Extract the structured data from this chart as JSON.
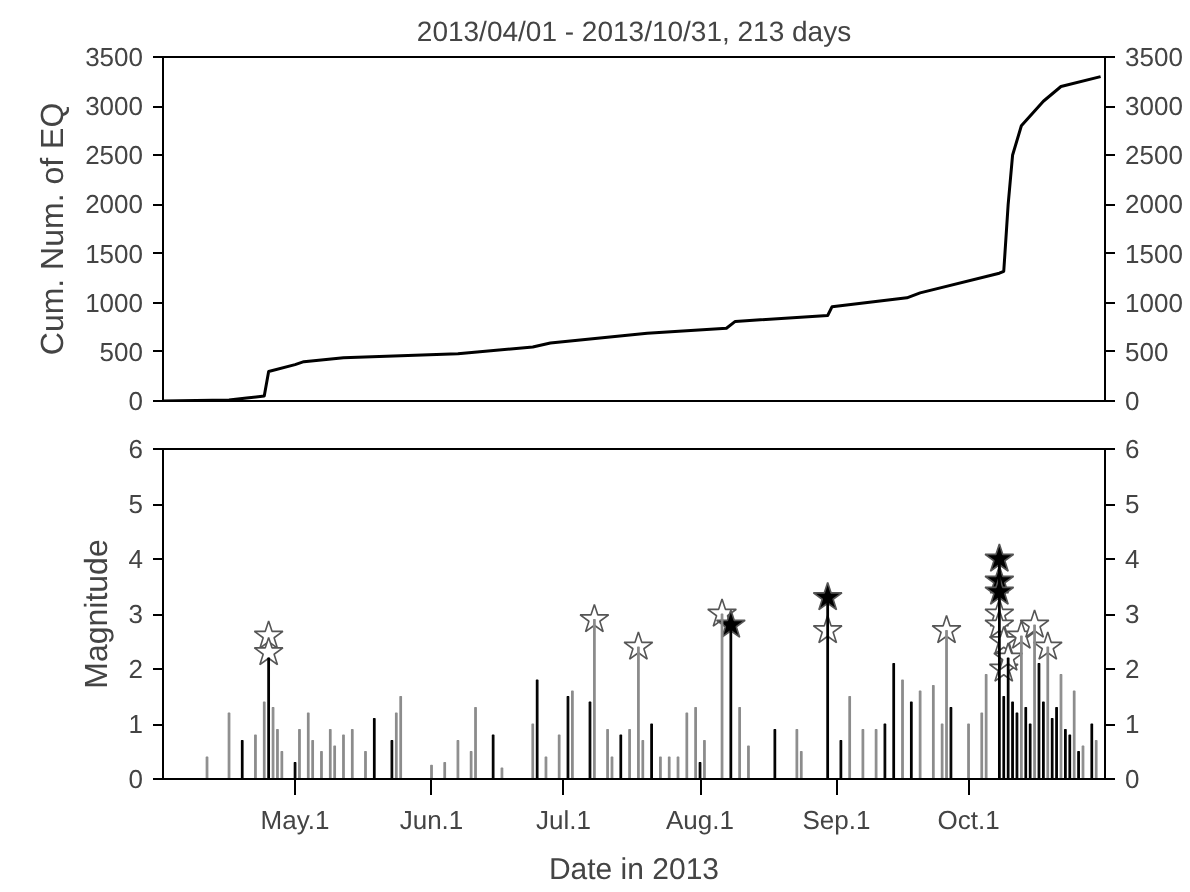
{
  "chart_data": [
    {
      "type": "line",
      "title": "2013/04/01 - 2013/10/31, 213 days",
      "ylabel": "Cum. Num. of EQ",
      "xlim": [
        "2013-04-01",
        "2013-11-01"
      ],
      "ylim": [
        0,
        3500
      ],
      "yticks": [
        0,
        500,
        1000,
        1500,
        2000,
        2500,
        3000,
        3500
      ],
      "y2lim": [
        0,
        3500
      ],
      "y2ticks": [
        0,
        500,
        1000,
        1500,
        2000,
        2500,
        3000,
        3500
      ],
      "tick_labels": "y",
      "grid": false,
      "line_style": "solid",
      "marker": "none",
      "series": [
        {
          "color": "#000000",
          "x": [
            "2013-04-01",
            "2013-04-16",
            "2013-04-20",
            "2013-04-24",
            "2013-04-25",
            "2013-05-01",
            "2013-05-03",
            "2013-05-12",
            "2013-05-25",
            "2013-06-07",
            "2013-06-24",
            "2013-06-28",
            "2013-07-20",
            "2013-08-07",
            "2013-08-09",
            "2013-08-30",
            "2013-08-31",
            "2013-09-17",
            "2013-09-20",
            "2013-10-08",
            "2013-10-09",
            "2013-10-10",
            "2013-10-11",
            "2013-10-13",
            "2013-10-18",
            "2013-10-22",
            "2013-10-31"
          ],
          "values": [
            0,
            10,
            30,
            50,
            300,
            370,
            400,
            440,
            460,
            480,
            550,
            590,
            690,
            740,
            810,
            870,
            960,
            1050,
            1100,
            1300,
            1320,
            2000,
            2500,
            2800,
            3050,
            3200,
            3300
          ]
        }
      ]
    },
    {
      "type": "bar",
      "xlabel": "Date in 2013",
      "ylabel": "Magnitude",
      "xlim": [
        "2013-04-01",
        "2013-11-01"
      ],
      "xticks": [
        {
          "value": "2013-05-01",
          "label": "May.1"
        },
        {
          "value": "2013-06-01",
          "label": "Jun.1"
        },
        {
          "value": "2013-07-01",
          "label": "Jul.1"
        },
        {
          "value": "2013-08-01",
          "label": "Aug.1"
        },
        {
          "value": "2013-09-01",
          "label": "Sep.1"
        },
        {
          "value": "2013-10-01",
          "label": "Oct.1"
        }
      ],
      "ylim": [
        0,
        6
      ],
      "yticks": [
        0,
        1,
        2,
        3,
        4,
        5,
        6
      ],
      "y2lim": [
        0,
        6
      ],
      "y2ticks": [
        0,
        1,
        2,
        3,
        4,
        5,
        6
      ],
      "grid": false,
      "series": [
        {
          "type": "bar",
          "color": "#8c8c8c",
          "x": [
            "2013-04-11",
            "2013-04-16",
            "2013-04-22",
            "2013-04-24",
            "2013-04-26",
            "2013-04-27",
            "2013-04-28",
            "2013-05-02",
            "2013-05-04",
            "2013-05-05",
            "2013-05-07",
            "2013-05-09",
            "2013-05-10",
            "2013-05-12",
            "2013-05-14",
            "2013-05-17",
            "2013-05-24",
            "2013-05-25",
            "2013-06-01",
            "2013-06-04",
            "2013-06-07",
            "2013-06-10",
            "2013-06-11",
            "2013-06-17",
            "2013-06-24",
            "2013-06-27",
            "2013-06-30",
            "2013-07-03",
            "2013-07-08",
            "2013-07-11",
            "2013-07-12",
            "2013-07-16",
            "2013-07-18",
            "2013-07-19",
            "2013-07-23",
            "2013-07-25",
            "2013-07-27",
            "2013-07-29",
            "2013-07-31",
            "2013-08-02",
            "2013-08-06",
            "2013-08-10",
            "2013-08-12",
            "2013-08-23",
            "2013-08-24",
            "2013-09-04",
            "2013-09-07",
            "2013-09-10",
            "2013-09-16",
            "2013-09-20",
            "2013-09-23",
            "2013-09-25",
            "2013-09-26",
            "2013-10-01",
            "2013-10-04",
            "2013-10-05",
            "2013-10-13",
            "2013-10-16",
            "2013-10-19",
            "2013-10-22",
            "2013-10-25",
            "2013-10-27",
            "2013-10-30"
          ],
          "values": [
            0.4,
            1.2,
            0.8,
            1.4,
            1.3,
            0.9,
            0.5,
            0.9,
            1.2,
            0.7,
            0.5,
            0.9,
            0.6,
            0.8,
            0.9,
            0.5,
            1.2,
            1.5,
            0.25,
            0.3,
            0.7,
            0.5,
            1.3,
            0.2,
            1.0,
            0.4,
            0.8,
            1.6,
            2.9,
            0.9,
            0.4,
            0.9,
            2.4,
            0.7,
            0.4,
            0.4,
            0.4,
            1.2,
            1.3,
            0.7,
            3.0,
            1.3,
            0.6,
            0.9,
            0.5,
            1.5,
            0.9,
            0.9,
            1.8,
            1.6,
            1.7,
            1.0,
            2.7,
            1.0,
            1.2,
            1.9,
            2.6,
            2.8,
            2.4,
            1.9,
            1.6,
            0.6,
            0.7
          ]
        },
        {
          "type": "bar",
          "color": "#000000",
          "x": [
            "2013-04-19",
            "2013-04-25",
            "2013-05-01",
            "2013-05-19",
            "2013-05-23",
            "2013-06-15",
            "2013-06-25",
            "2013-07-02",
            "2013-07-07",
            "2013-07-14",
            "2013-07-21",
            "2013-08-01",
            "2013-08-08",
            "2013-08-18",
            "2013-08-30",
            "2013-09-02",
            "2013-09-12",
            "2013-09-14",
            "2013-09-18",
            "2013-09-27",
            "2013-10-08",
            "2013-10-09",
            "2013-10-10",
            "2013-10-11",
            "2013-10-12",
            "2013-10-14",
            "2013-10-15",
            "2013-10-17",
            "2013-10-18",
            "2013-10-20",
            "2013-10-21",
            "2013-10-23",
            "2013-10-24",
            "2013-10-26",
            "2013-10-29"
          ],
          "values": [
            0.7,
            2.2,
            0.3,
            1.1,
            0.7,
            0.8,
            1.8,
            1.5,
            1.4,
            0.8,
            1.0,
            0.3,
            2.8,
            0.9,
            3.3,
            0.7,
            1.0,
            2.1,
            1.4,
            1.3,
            4.0,
            1.5,
            2.2,
            1.4,
            1.2,
            1.3,
            1.0,
            2.1,
            1.4,
            1.1,
            1.3,
            0.9,
            0.8,
            0.5,
            1.0
          ]
        },
        {
          "type": "scatter",
          "marker": "star",
          "color": "#ffffff",
          "x": [
            "2013-04-25",
            "2013-04-25",
            "2013-07-08",
            "2013-07-18",
            "2013-08-06",
            "2013-08-30",
            "2013-09-26",
            "2013-10-08",
            "2013-10-08",
            "2013-10-09",
            "2013-10-09",
            "2013-10-10",
            "2013-10-13",
            "2013-10-16",
            "2013-10-19"
          ],
          "values": [
            2.6,
            2.3,
            2.9,
            2.4,
            3.0,
            2.7,
            2.7,
            3.0,
            2.8,
            2.5,
            2.0,
            2.2,
            2.6,
            2.8,
            2.4
          ]
        },
        {
          "type": "scatter",
          "marker": "star",
          "color": "#000000",
          "x": [
            "2013-08-08",
            "2013-08-30",
            "2013-10-08",
            "2013-10-08",
            "2013-10-08"
          ],
          "values": [
            2.8,
            3.3,
            4.0,
            3.6,
            3.4
          ]
        }
      ]
    }
  ]
}
